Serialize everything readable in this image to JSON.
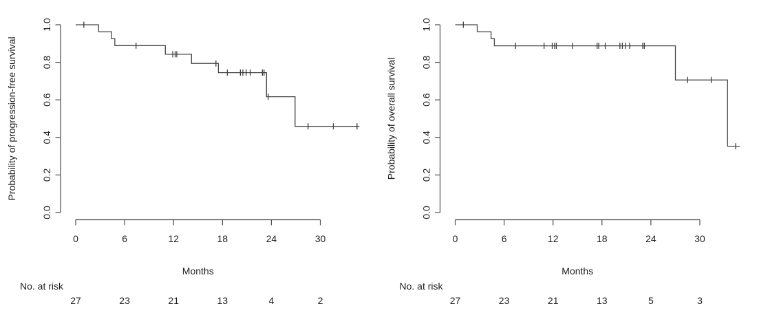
{
  "figure": {
    "background": "#ffffff",
    "line_color": "#474747",
    "text_color": "#1f1f1f"
  },
  "chart_data": [
    {
      "id": "progression-free-survival",
      "type": "line",
      "subtype": "kaplan-meier-step",
      "title": "",
      "xlabel": "Months",
      "ylabel": "Probability of progression-free survival",
      "xlim": [
        0,
        35
      ],
      "ylim": [
        0.0,
        1.0
      ],
      "xticks": [
        "0",
        "6",
        "12",
        "18",
        "24",
        "30"
      ],
      "yticks": [
        "0.0",
        "0.2",
        "0.4",
        "0.6",
        "0.8",
        "1.0"
      ],
      "grid": false,
      "legend": null,
      "series": [
        {
          "name": "progression-free survival",
          "steps": [
            [
              0,
              1.0
            ],
            [
              2.8,
              0.963
            ],
            [
              4.4,
              0.926
            ],
            [
              4.8,
              0.889
            ],
            [
              11.0,
              0.843
            ],
            [
              14.2,
              0.794
            ],
            [
              17.5,
              0.745
            ],
            [
              23.4,
              0.617
            ],
            [
              26.9,
              0.459
            ]
          ],
          "end_time": 34.8,
          "censor_marks": [
            [
              1.0,
              1.0
            ],
            [
              7.4,
              0.889
            ],
            [
              11.9,
              0.843
            ],
            [
              12.2,
              0.843
            ],
            [
              12.4,
              0.843
            ],
            [
              17.2,
              0.794
            ],
            [
              18.6,
              0.745
            ],
            [
              20.2,
              0.745
            ],
            [
              20.5,
              0.745
            ],
            [
              20.9,
              0.745
            ],
            [
              21.4,
              0.745
            ],
            [
              22.9,
              0.745
            ],
            [
              23.1,
              0.745
            ],
            [
              23.6,
              0.617
            ],
            [
              28.5,
              0.459
            ],
            [
              31.6,
              0.459
            ],
            [
              34.5,
              0.459
            ]
          ]
        }
      ],
      "risk_table": {
        "label": "No. at risk",
        "times": [
          0,
          6,
          12,
          18,
          24,
          30
        ],
        "counts": [
          "27",
          "23",
          "21",
          "13",
          "4",
          "2"
        ]
      }
    },
    {
      "id": "overall-survival",
      "type": "line",
      "subtype": "kaplan-meier-step",
      "title": "",
      "xlabel": "Months",
      "ylabel": "Probability of overall survival",
      "xlim": [
        0,
        35
      ],
      "ylim": [
        0.0,
        1.0
      ],
      "xticks": [
        "0",
        "6",
        "12",
        "18",
        "24",
        "30"
      ],
      "yticks": [
        "0.0",
        "0.2",
        "0.4",
        "0.6",
        "0.8",
        "1.0"
      ],
      "grid": false,
      "legend": null,
      "series": [
        {
          "name": "overall survival",
          "steps": [
            [
              0,
              1.0
            ],
            [
              2.7,
              0.963
            ],
            [
              4.4,
              0.926
            ],
            [
              4.8,
              0.888
            ],
            [
              27.0,
              0.706
            ],
            [
              33.4,
              0.353
            ]
          ],
          "end_time": 34.9,
          "censor_marks": [
            [
              1.0,
              1.0
            ],
            [
              7.4,
              0.888
            ],
            [
              10.9,
              0.888
            ],
            [
              11.9,
              0.888
            ],
            [
              12.2,
              0.888
            ],
            [
              12.4,
              0.888
            ],
            [
              14.4,
              0.888
            ],
            [
              17.4,
              0.888
            ],
            [
              17.6,
              0.888
            ],
            [
              18.4,
              0.888
            ],
            [
              20.2,
              0.888
            ],
            [
              20.5,
              0.888
            ],
            [
              20.9,
              0.888
            ],
            [
              21.4,
              0.888
            ],
            [
              23.0,
              0.888
            ],
            [
              23.2,
              0.888
            ],
            [
              28.5,
              0.706
            ],
            [
              31.4,
              0.706
            ],
            [
              34.4,
              0.353
            ]
          ]
        }
      ],
      "risk_table": {
        "label": "No. at risk",
        "times": [
          0,
          6,
          12,
          18,
          24,
          30
        ],
        "counts": [
          "27",
          "23",
          "21",
          "13",
          "5",
          "3"
        ]
      }
    }
  ]
}
